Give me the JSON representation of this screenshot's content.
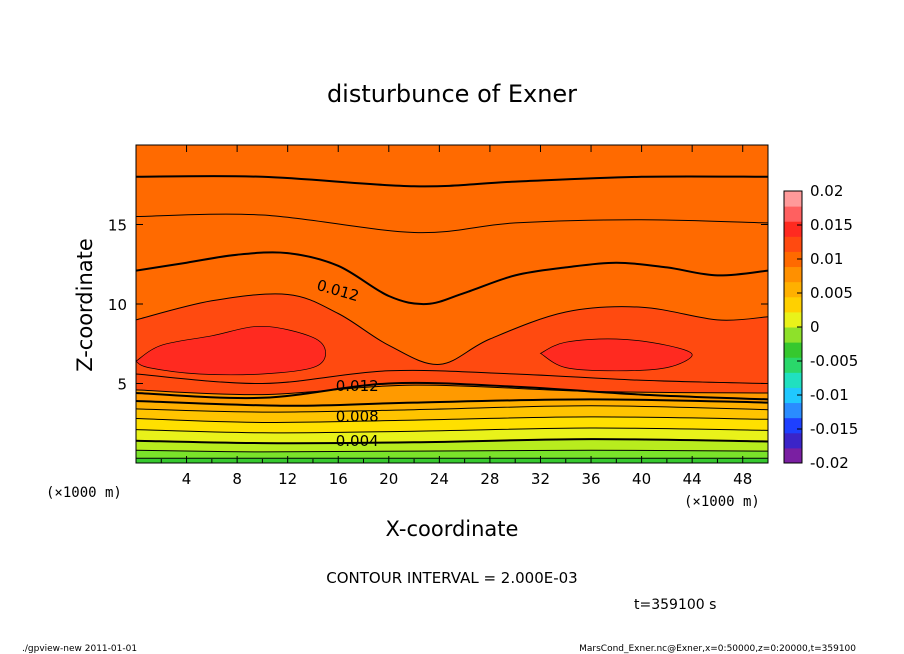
{
  "chart_data": {
    "type": "heatmap",
    "title": "disturbunce of Exner",
    "xlabel": "X-coordinate",
    "ylabel": "Z-coordinate",
    "x_unit_label": "(×1000 m)",
    "y_unit_label": "(×1000 m)",
    "xlim": [
      0,
      50
    ],
    "ylim": [
      0,
      20
    ],
    "x_ticks": [
      4,
      8,
      12,
      16,
      20,
      24,
      28,
      32,
      36,
      40,
      44,
      48
    ],
    "y_ticks": [
      5,
      10,
      15
    ],
    "colorbar": {
      "levels": [
        -0.02,
        -0.015,
        -0.01,
        -0.005,
        0,
        0.005,
        0.01,
        0.015,
        0.02
      ],
      "tick_labels": [
        "0.02",
        "0.015",
        "0.01",
        "0.005",
        "0",
        "-0.005",
        "-0.01",
        "-0.015",
        "-0.02"
      ],
      "colors": [
        "#7a1fa2",
        "#3b24c8",
        "#1e40ff",
        "#2a8cff",
        "#20c8ff",
        "#20e0c0",
        "#2ad86a",
        "#36c82e",
        "#8ee12a",
        "#e9f21a",
        "#ffd000",
        "#ffb000",
        "#ff9000",
        "#ff6a00",
        "#ff4a10",
        "#ff2a20",
        "#ff6060",
        "#ff9a9a"
      ]
    },
    "contour_interval": "2.000E-03",
    "contour_labels": [
      "0.012",
      "0.012",
      "0.008",
      "0.004"
    ],
    "bands": [
      {
        "level": 0.002,
        "color": "#2ad86a",
        "boundary": [
          [
            0,
            0.3
          ],
          [
            50,
            0.3
          ]
        ]
      },
      {
        "level": 0.003,
        "color": "#7ae32a",
        "boundary": [
          [
            0,
            0.8
          ],
          [
            10,
            0.7
          ],
          [
            22,
            0.75
          ],
          [
            36,
            0.8
          ],
          [
            50,
            0.75
          ]
        ]
      },
      {
        "level": 0.004,
        "color": "#b8ec1e",
        "boundary": [
          [
            0,
            1.4
          ],
          [
            10,
            1.25
          ],
          [
            22,
            1.3
          ],
          [
            36,
            1.5
          ],
          [
            50,
            1.35
          ]
        ]
      },
      {
        "level": 0.005,
        "color": "#e9f21a",
        "boundary": [
          [
            0,
            2.1
          ],
          [
            10,
            1.9
          ],
          [
            22,
            2.0
          ],
          [
            36,
            2.2
          ],
          [
            50,
            2.05
          ]
        ]
      },
      {
        "level": 0.006,
        "color": "#ffe000",
        "boundary": [
          [
            0,
            2.8
          ],
          [
            10,
            2.55
          ],
          [
            22,
            2.7
          ],
          [
            36,
            2.9
          ],
          [
            50,
            2.75
          ]
        ]
      },
      {
        "level": 0.007,
        "color": "#ffc400",
        "boundary": [
          [
            0,
            3.4
          ],
          [
            10,
            3.2
          ],
          [
            22,
            3.35
          ],
          [
            36,
            3.6
          ],
          [
            50,
            3.35
          ]
        ]
      },
      {
        "level": 0.008,
        "color": "#ffb000",
        "boundary": [
          [
            0,
            3.9
          ],
          [
            12,
            3.6
          ],
          [
            22,
            3.8
          ],
          [
            36,
            4.0
          ],
          [
            50,
            3.8
          ]
        ]
      },
      {
        "level": 0.01,
        "color": "#ff9a00",
        "boundary": [
          [
            0,
            4.6
          ],
          [
            10,
            4.3
          ],
          [
            22,
            4.9
          ],
          [
            36,
            4.5
          ],
          [
            50,
            4.4
          ]
        ]
      },
      {
        "level": 0.012,
        "color": "#ff6a00",
        "boundary": [
          [
            0,
            4.4
          ],
          [
            10,
            4.1
          ],
          [
            20,
            5.0
          ],
          [
            30,
            4.8
          ],
          [
            40,
            4.3
          ],
          [
            50,
            4.0
          ]
        ]
      },
      {
        "level": 0.014,
        "color": "#ff4a10",
        "boundary": [
          [
            0,
            5.6
          ],
          [
            10,
            5.0
          ],
          [
            20,
            5.8
          ],
          [
            30,
            5.6
          ],
          [
            40,
            5.2
          ],
          [
            50,
            5.0
          ]
        ]
      }
    ],
    "upper_bands": [
      {
        "level": 0.008,
        "color": "#ffb000",
        "boundary": [
          [
            0,
            18.0
          ],
          [
            10,
            18.0
          ],
          [
            22,
            17.4
          ],
          [
            30,
            17.7
          ],
          [
            40,
            18.0
          ],
          [
            50,
            18.0
          ]
        ]
      },
      {
        "level": 0.01,
        "color": "#ff9a00",
        "boundary": [
          [
            0,
            15.5
          ],
          [
            10,
            15.6
          ],
          [
            22,
            14.5
          ],
          [
            30,
            15.1
          ],
          [
            40,
            15.3
          ],
          [
            50,
            15.1
          ]
        ]
      },
      {
        "level": 0.012,
        "color": "#ff6a00",
        "boundary": [
          [
            0,
            12.1
          ],
          [
            4,
            12.6
          ],
          [
            8,
            13.1
          ],
          [
            12,
            13.2
          ],
          [
            16,
            12.4
          ],
          [
            20,
            10.5
          ],
          [
            23,
            10.0
          ],
          [
            26,
            10.7
          ],
          [
            30,
            11.8
          ],
          [
            34,
            12.3
          ],
          [
            38,
            12.6
          ],
          [
            42,
            12.3
          ],
          [
            46,
            11.8
          ],
          [
            50,
            12.1
          ]
        ]
      },
      {
        "level": 0.014,
        "color": "#ff4a10",
        "boundary": [
          [
            0,
            9.0
          ],
          [
            6,
            10.2
          ],
          [
            12,
            10.6
          ],
          [
            16,
            9.4
          ],
          [
            20,
            7.4
          ],
          [
            24,
            6.2
          ],
          [
            28,
            7.8
          ],
          [
            34,
            9.5
          ],
          [
            40,
            9.8
          ],
          [
            46,
            9.0
          ],
          [
            50,
            9.2
          ]
        ]
      }
    ],
    "max_regions": [
      {
        "level": 0.016,
        "color": "#ff2a20",
        "outline": [
          [
            0,
            6.4
          ],
          [
            2,
            7.4
          ],
          [
            6,
            8.0
          ],
          [
            10,
            8.6
          ],
          [
            14,
            7.9
          ],
          [
            15,
            6.9
          ],
          [
            14,
            6.0
          ],
          [
            10,
            5.6
          ],
          [
            5,
            5.6
          ],
          [
            1,
            6.0
          ]
        ]
      },
      {
        "level": 0.016,
        "color": "#ff2a20",
        "outline": [
          [
            32,
            6.9
          ],
          [
            34,
            7.6
          ],
          [
            38,
            7.8
          ],
          [
            42,
            7.4
          ],
          [
            44,
            6.8
          ],
          [
            42,
            6.0
          ],
          [
            38,
            5.8
          ],
          [
            34,
            6.0
          ]
        ]
      }
    ]
  },
  "annotations": {
    "contour_interval_text": "CONTOUR INTERVAL = 2.000E-03",
    "time_text": "t=359100 s",
    "footer_left": "./gpview-new   2011-01-01",
    "footer_right": "MarsCond_Exner.nc@Exner,x=0:50000,z=0:20000,t=359100"
  }
}
